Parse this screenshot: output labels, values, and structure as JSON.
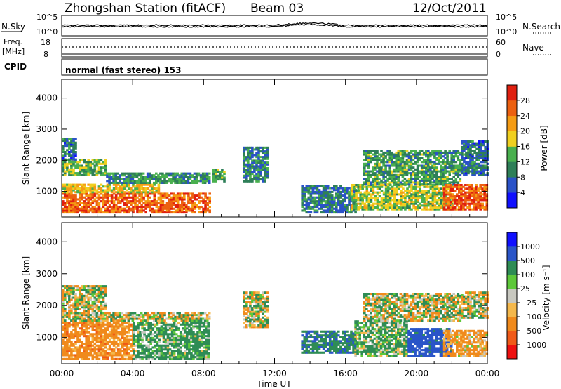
{
  "header": {
    "title": "Zhongshan Station (fitACF)",
    "beam": "Beam 03",
    "date": "12/Oct/2011"
  },
  "top_panels": {
    "nsky_label": "N.Sky",
    "nsearch_label": "N.Search",
    "freq_label_line1": "Freq.",
    "freq_label_line2": "[MHz]",
    "nave_label": "Nave",
    "cpid_label": "CPID",
    "cpid_text": "normal (fast stereo) 153",
    "nsky_ticks": [
      "10^5",
      "10^0"
    ],
    "nsearch_ticks": [
      "10^5",
      "10^0"
    ],
    "freq_ticks": [
      "18",
      "8"
    ],
    "nave_ticks": [
      "60",
      "0"
    ]
  },
  "colors": {
    "power_scale": [
      "#1010ff",
      "#2a52c8",
      "#2e7f58",
      "#49b04e",
      "#f0d020",
      "#f59c14",
      "#ec6010",
      "#e02010"
    ],
    "velocity_scale": [
      "#ee1010",
      "#f05a18",
      "#f08a1c",
      "#f4b84c",
      "#c8c8c0",
      "#5ec83a",
      "#2e8c55",
      "#2a55c8",
      "#1010ff"
    ]
  },
  "chart_data": [
    {
      "type": "heatmap",
      "name": "power",
      "xlabel": "Time UT",
      "ylabel": "Slant Range [km]",
      "x_range_hours": [
        0,
        24
      ],
      "y_range_km": [
        180,
        4600
      ],
      "y_ticks": [
        "1000",
        "2000",
        "3000",
        "4000"
      ],
      "colorbar_label": "Power [dB]",
      "colorbar_ticks": [
        "4",
        "8",
        "12",
        "16",
        "20",
        "24",
        "28"
      ],
      "colorbar_range": [
        0,
        32
      ],
      "regions": [
        {
          "t0": 0.0,
          "t1": 8.3,
          "r0": 300,
          "r1": 950,
          "value": 26
        },
        {
          "t0": 0.0,
          "t1": 5.5,
          "r0": 950,
          "r1": 1250,
          "value": 19
        },
        {
          "t0": 0.0,
          "t1": 2.5,
          "r0": 1500,
          "r1": 2000,
          "value": 14
        },
        {
          "t0": 0.0,
          "t1": 0.8,
          "r0": 2000,
          "r1": 2700,
          "value": 8
        },
        {
          "t0": 2.5,
          "t1": 8.3,
          "r0": 1250,
          "r1": 1600,
          "value": 11
        },
        {
          "t0": 8.5,
          "t1": 9.2,
          "r0": 1300,
          "r1": 1700,
          "value": 14
        },
        {
          "t0": 10.2,
          "t1": 11.6,
          "r0": 1300,
          "r1": 2400,
          "value": 10
        },
        {
          "t0": 13.5,
          "t1": 16.5,
          "r0": 300,
          "r1": 1200,
          "value": 9
        },
        {
          "t0": 16.3,
          "t1": 22.0,
          "r0": 400,
          "r1": 1200,
          "value": 16
        },
        {
          "t0": 17.0,
          "t1": 22.5,
          "r0": 1200,
          "r1": 2300,
          "value": 12
        },
        {
          "t0": 21.5,
          "t1": 24.0,
          "r0": 400,
          "r1": 1200,
          "value": 27
        },
        {
          "t0": 22.5,
          "t1": 24.0,
          "r0": 1500,
          "r1": 2600,
          "value": 8
        }
      ]
    },
    {
      "type": "heatmap",
      "name": "velocity",
      "xlabel": "Time UT",
      "ylabel": "Slant Range [km]",
      "x_range_hours": [
        0,
        24
      ],
      "x_ticks": [
        "00:00",
        "04:00",
        "08:00",
        "12:00",
        "16:00",
        "20:00",
        "00:00"
      ],
      "y_range_km": [
        180,
        4600
      ],
      "y_ticks": [
        "1000",
        "2000",
        "3000",
        "4000"
      ],
      "colorbar_label": "Velocity [m s⁻¹]",
      "colorbar_ticks": [
        "1000",
        "500",
        "100",
        "25",
        "−25",
        "−100",
        "−500",
        "−1000"
      ],
      "regions": [
        {
          "t0": 0.0,
          "t1": 4.0,
          "r0": 300,
          "r1": 1500,
          "value": -300
        },
        {
          "t0": 4.0,
          "t1": 8.3,
          "r0": 300,
          "r1": 1500,
          "value": 200
        },
        {
          "t0": 0.0,
          "t1": 2.5,
          "r0": 1500,
          "r1": 2600,
          "value": 0
        },
        {
          "t0": 2.5,
          "t1": 8.3,
          "r0": 1500,
          "r1": 1800,
          "value": 0
        },
        {
          "t0": 10.2,
          "t1": 11.6,
          "r0": 1300,
          "r1": 2400,
          "value": 0
        },
        {
          "t0": 13.5,
          "t1": 16.5,
          "r0": 500,
          "r1": 1200,
          "value": 400
        },
        {
          "t0": 16.5,
          "t1": 19.5,
          "r0": 400,
          "r1": 1500,
          "value": 150
        },
        {
          "t0": 19.5,
          "t1": 22.0,
          "r0": 400,
          "r1": 1300,
          "value": 700
        },
        {
          "t0": 17.0,
          "t1": 22.5,
          "r0": 1500,
          "r1": 2400,
          "value": 0
        },
        {
          "t0": 21.5,
          "t1": 24.0,
          "r0": 400,
          "r1": 1200,
          "value": -200
        },
        {
          "t0": 22.5,
          "t1": 24.0,
          "r0": 1600,
          "r1": 2400,
          "value": 0
        }
      ]
    }
  ]
}
